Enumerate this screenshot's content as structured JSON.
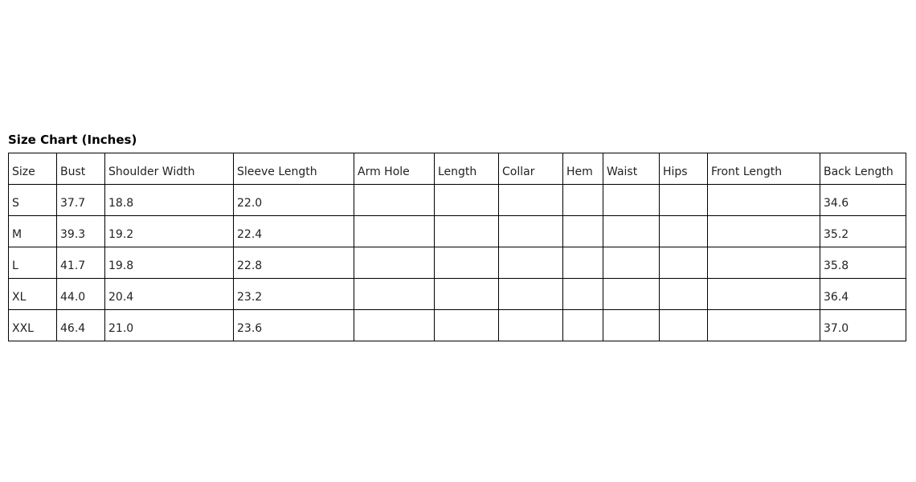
{
  "title": "Size Chart (Inches)",
  "table": {
    "headers": [
      "Size",
      "Bust",
      "Shoulder Width",
      "Sleeve Length",
      "Arm Hole",
      "Length",
      "Collar",
      "Hem",
      "Waist",
      "Hips",
      "Front Length",
      "Back Length"
    ],
    "rows": [
      [
        "S",
        "37.7",
        "18.8",
        "22.0",
        "",
        "",
        "",
        "",
        "",
        "",
        "",
        "34.6"
      ],
      [
        "M",
        "39.3",
        "19.2",
        "22.4",
        "",
        "",
        "",
        "",
        "",
        "",
        "",
        "35.2"
      ],
      [
        "L",
        "41.7",
        "19.8",
        "22.8",
        "",
        "",
        "",
        "",
        "",
        "",
        "",
        "35.8"
      ],
      [
        "XL",
        "44.0",
        "20.4",
        "23.2",
        "",
        "",
        "",
        "",
        "",
        "",
        "",
        "36.4"
      ],
      [
        "XXL",
        "46.4",
        "21.0",
        "23.6",
        "",
        "",
        "",
        "",
        "",
        "",
        "",
        "37.0"
      ]
    ]
  }
}
